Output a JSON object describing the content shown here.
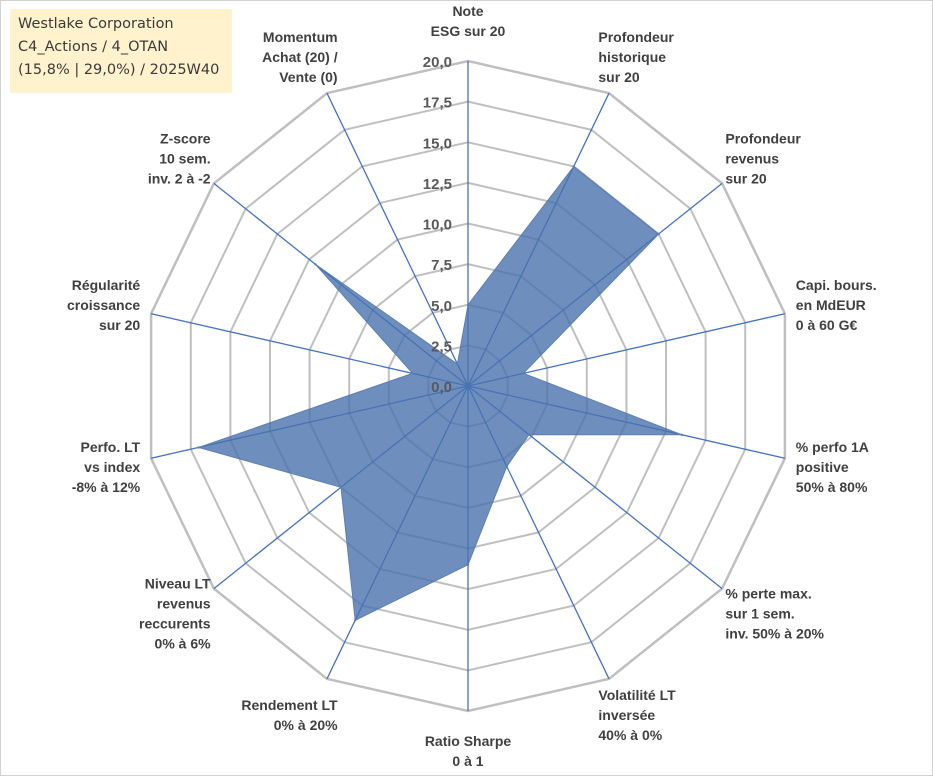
{
  "header": {
    "lines": [
      "Westlake Corporation",
      "C4_Actions / 4_OTAN",
      "(15,8% | 29,0%) / 2025W40"
    ]
  },
  "chart_data": {
    "type": "radar",
    "rmin": 0,
    "rmax": 20,
    "tick_step": 2.5,
    "tick_labels": [
      "0,0",
      "2,5",
      "5,0",
      "7,5",
      "10,0",
      "12,5",
      "15,0",
      "17,5",
      "20,0"
    ],
    "grid": true,
    "categories": [
      [
        "Note",
        "ESG sur 20"
      ],
      [
        "Profondeur",
        "historique",
        "sur 20"
      ],
      [
        "Profondeur",
        "revenus",
        "sur 20"
      ],
      [
        "Capi. bours.",
        "en MdEUR",
        "0 à 60 G€"
      ],
      [
        "% perfo 1A",
        "positive",
        "50% à 80%"
      ],
      [
        "% perte max.",
        "sur 1 sem.",
        "inv. 50% à 20%"
      ],
      [
        "Volatilité LT",
        "inversée",
        "40% à 0%"
      ],
      [
        "Ratio Sharpe",
        "0 à 1"
      ],
      [
        "Rendement LT",
        "0% à 20%"
      ],
      [
        "Niveau LT",
        "revenus",
        "reccurents",
        "0% à 6%"
      ],
      [
        "Perfo. LT",
        "vs index",
        "-8% à 12%"
      ],
      [
        "Régularité",
        "croissance",
        "sur 20"
      ],
      [
        "Z-score",
        "10 sem.",
        "inv. 2 à -2"
      ],
      [
        "Momentum",
        "Achat (20) /",
        "Vente (0)"
      ]
    ],
    "series": [
      {
        "values": [
          5.0,
          15.0,
          15.0,
          3.5,
          13.5,
          4.8,
          5.5,
          11.0,
          16.0,
          10.0,
          17.0,
          3.5,
          12.0,
          1.5
        ],
        "color": "#5b7fb4"
      }
    ],
    "colors": {
      "fill": "#4a72ae",
      "fill_opacity": 0.8,
      "grid": "#bfbfbf",
      "spoke": "#4472c4"
    }
  }
}
